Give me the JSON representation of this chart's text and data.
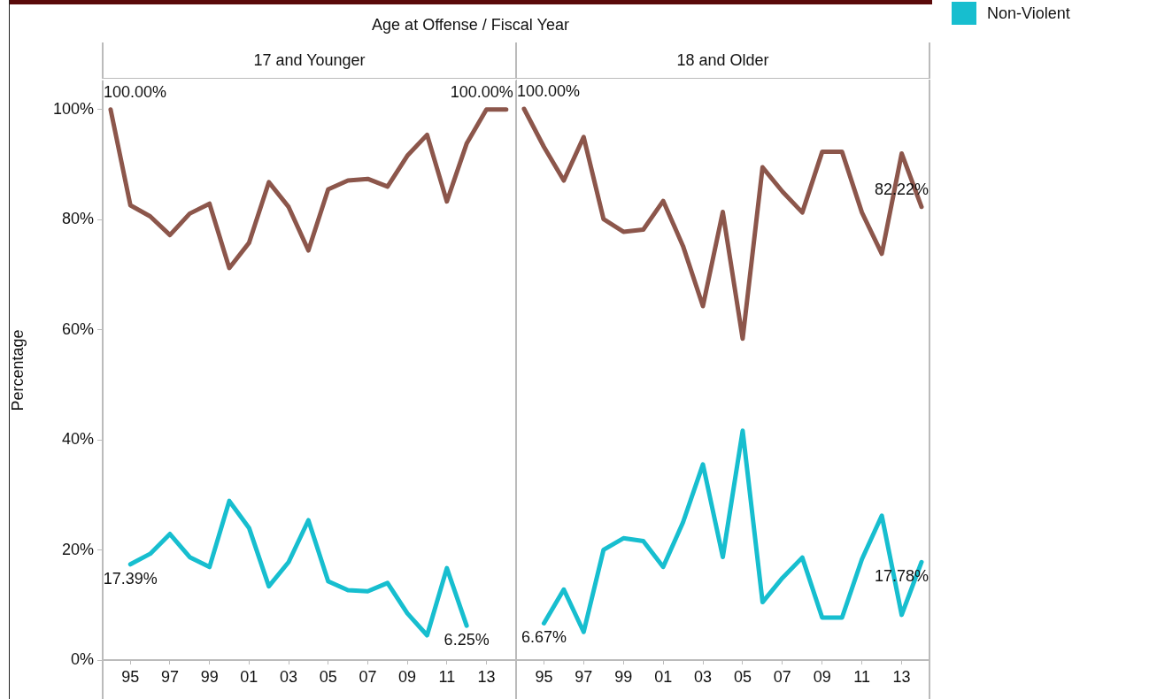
{
  "chart_data": [
    {
      "type": "line",
      "title": "17 and Younger",
      "annotations": [
        "Age at Offense / Fiscal Year"
      ],
      "ylabel": "Percentage",
      "xlim": [
        1993.6,
        2014.5
      ],
      "xticks": [
        {
          "value": 1995,
          "label": "95"
        },
        {
          "value": 1997,
          "label": "97"
        },
        {
          "value": 1999,
          "label": "99"
        },
        {
          "value": 2001,
          "label": "01"
        },
        {
          "value": 2003,
          "label": "03"
        },
        {
          "value": 2005,
          "label": "05"
        },
        {
          "value": 2007,
          "label": "07"
        },
        {
          "value": 2009,
          "label": "09"
        },
        {
          "value": 2011,
          "label": "11"
        },
        {
          "value": 2013,
          "label": "13"
        }
      ],
      "ylim": [
        0,
        105.3
      ],
      "yticks": [
        {
          "value": 0,
          "label": "0%"
        },
        {
          "value": 20,
          "label": "20%"
        },
        {
          "value": 40,
          "label": "40%"
        },
        {
          "value": 60,
          "label": "60%"
        },
        {
          "value": 80,
          "label": "80%"
        },
        {
          "value": 100,
          "label": "100%"
        }
      ],
      "legend": "right",
      "marker": "none",
      "line_style": "solid",
      "series": [
        {
          "color": "#8c564b",
          "x": [
            1994,
            1995,
            1996,
            1997,
            1998,
            1999,
            2000,
            2001,
            2002,
            2003,
            2004,
            2005,
            2006,
            2007,
            2008,
            2009,
            2010,
            2011,
            2012,
            2013,
            2014
          ],
          "values": [
            100,
            82.6,
            80.6,
            77.2,
            81.1,
            82.9,
            71.2,
            75.8,
            86.8,
            82.3,
            74.4,
            85.5,
            87.1,
            87.4,
            86.0,
            91.6,
            95.4,
            83.3,
            93.8,
            100,
            100
          ],
          "value_labels": [
            "100.00%",
            null,
            null,
            null,
            null,
            null,
            null,
            null,
            null,
            null,
            null,
            null,
            null,
            null,
            null,
            null,
            null,
            null,
            null,
            null,
            "100.00%"
          ]
        },
        {
          "name": "Non-Violent",
          "color": "#17becf",
          "x": [
            1995,
            1996,
            1997,
            1998,
            1999,
            2000,
            2001,
            2002,
            2003,
            2004,
            2005,
            2006,
            2007,
            2008,
            2009,
            2010,
            2011,
            2012
          ],
          "values": [
            17.39,
            19.3,
            22.9,
            18.7,
            16.9,
            28.9,
            24.0,
            13.4,
            17.8,
            25.4,
            14.3,
            12.7,
            12.5,
            14.0,
            8.5,
            4.5,
            16.7,
            6.25
          ],
          "value_labels": [
            "17.39%",
            null,
            null,
            null,
            null,
            null,
            null,
            null,
            null,
            null,
            null,
            null,
            null,
            null,
            null,
            null,
            null,
            "6.25%"
          ]
        }
      ]
    },
    {
      "type": "line",
      "title": "18 and Older",
      "xlim": [
        1993.6,
        2014.4
      ],
      "xticks": [
        {
          "value": 1995,
          "label": "95"
        },
        {
          "value": 1997,
          "label": "97"
        },
        {
          "value": 1999,
          "label": "99"
        },
        {
          "value": 2001,
          "label": "01"
        },
        {
          "value": 2003,
          "label": "03"
        },
        {
          "value": 2005,
          "label": "05"
        },
        {
          "value": 2007,
          "label": "07"
        },
        {
          "value": 2009,
          "label": "09"
        },
        {
          "value": 2011,
          "label": "11"
        },
        {
          "value": 2013,
          "label": "13"
        }
      ],
      "ylim": [
        0,
        105.3
      ],
      "tick_labels": "x",
      "marker": "none",
      "line_style": "solid",
      "series": [
        {
          "color": "#8c564b",
          "x": [
            1994,
            1995,
            1996,
            1997,
            1998,
            1999,
            2000,
            2001,
            2002,
            2003,
            2004,
            2005,
            2006,
            2007,
            2008,
            2009,
            2010,
            2011,
            2012,
            2013,
            2014
          ],
          "values": [
            100,
            93.1,
            87.0,
            94.9,
            80.0,
            77.7,
            78.1,
            83.3,
            75.1,
            64.2,
            81.3,
            58.3,
            89.4,
            85.0,
            81.2,
            92.2,
            92.2,
            81.2,
            73.7,
            91.9,
            82.22
          ],
          "value_labels": [
            "100.00%",
            null,
            null,
            null,
            null,
            null,
            null,
            null,
            null,
            null,
            null,
            null,
            null,
            null,
            null,
            null,
            null,
            null,
            null,
            null,
            "82.22%"
          ]
        },
        {
          "color": "#17becf",
          "x": [
            1995,
            1996,
            1997,
            1998,
            1999,
            2000,
            2001,
            2002,
            2003,
            2004,
            2005,
            2006,
            2007,
            2008,
            2009,
            2010,
            2011,
            2012,
            2013,
            2014
          ],
          "values": [
            6.67,
            12.8,
            5.1,
            20.0,
            22.1,
            21.6,
            16.9,
            25.0,
            35.5,
            18.7,
            41.6,
            10.5,
            14.9,
            18.6,
            7.7,
            7.7,
            18.3,
            26.2,
            8.2,
            17.78
          ],
          "value_labels": [
            "6.67%",
            null,
            null,
            null,
            null,
            null,
            null,
            null,
            null,
            null,
            null,
            null,
            null,
            null,
            null,
            null,
            null,
            null,
            null,
            "17.78%"
          ]
        }
      ]
    }
  ]
}
